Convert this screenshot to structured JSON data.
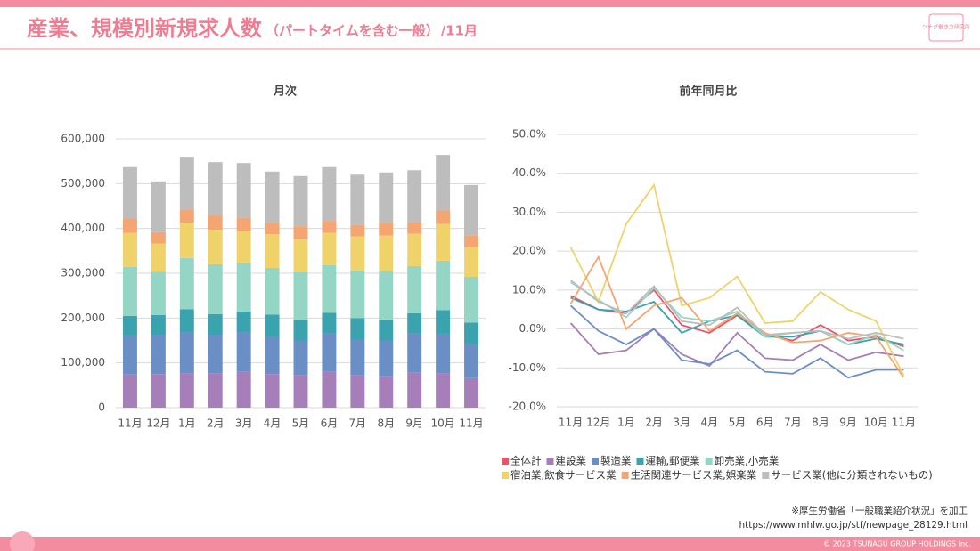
{
  "header": {
    "title": "産業、規模別新規求人数",
    "subtitle": "（パートタイムを含む一般）",
    "month": "/11月",
    "logo": "ツナグ働き方研究所"
  },
  "source": [
    "※厚生労働省「一般職業紹介状況」を加工",
    "https://www.mhlw.go.jp/stf/newpage_28129.html"
  ],
  "copyright": "© 2023 TSUNAGU GROUP HOLDINGS Inc.",
  "chart_data": [
    {
      "type": "stacked_bar",
      "title": "月次",
      "categories": [
        "11月",
        "12月",
        "1月",
        "2月",
        "3月",
        "4月",
        "5月",
        "6月",
        "7月",
        "8月",
        "9月",
        "10月",
        "11月"
      ],
      "ylim": [
        0,
        600000
      ],
      "yticks": [
        0,
        {
          "value": 100000,
          "label": "100,000"
        },
        {
          "value": 200000,
          "label": "200,000"
        },
        {
          "value": 300000,
          "label": "300,000"
        },
        {
          "value": 400000,
          "label": "400,000"
        },
        {
          "value": 500000,
          "label": "500,000"
        },
        {
          "value": 600000,
          "label": "600,000"
        }
      ],
      "grid": true,
      "series": [
        {
          "color": "#a67fb8",
          "values": [
            74000,
            75000,
            76000,
            76000,
            80000,
            75000,
            72000,
            80000,
            72000,
            70000,
            78000,
            76000,
            66000
          ]
        },
        {
          "color": "#6b8fc5",
          "values": [
            87000,
            87000,
            92000,
            86000,
            88000,
            83000,
            78000,
            86000,
            80000,
            80000,
            88000,
            89000,
            76000
          ]
        },
        {
          "color": "#3aa3ad",
          "values": [
            44000,
            45000,
            52000,
            47000,
            47000,
            50000,
            46000,
            46000,
            48000,
            47000,
            45000,
            53000,
            48000
          ]
        },
        {
          "color": "#95d5c6",
          "values": [
            109000,
            96000,
            114000,
            111000,
            109000,
            104000,
            106000,
            106000,
            106000,
            108000,
            105000,
            110000,
            102000
          ]
        },
        {
          "color": "#efd36a",
          "values": [
            76000,
            63000,
            79000,
            77000,
            71000,
            75000,
            74000,
            72000,
            76000,
            79000,
            72000,
            82000,
            66000
          ]
        },
        {
          "color": "#f4a672",
          "values": [
            33000,
            26000,
            28000,
            32000,
            29000,
            26000,
            29000,
            27000,
            26000,
            29000,
            27000,
            30000,
            27000
          ]
        },
        {
          "color": "#bdbdbd",
          "values": [
            114000,
            113000,
            119000,
            119000,
            122000,
            114000,
            112000,
            120000,
            112000,
            112000,
            115000,
            124000,
            112000
          ]
        }
      ]
    },
    {
      "type": "line",
      "title": "前年同月比",
      "categories": [
        "11月",
        "12月",
        "1月",
        "2月",
        "3月",
        "4月",
        "5月",
        "6月",
        "7月",
        "8月",
        "9月",
        "10月",
        "11月"
      ],
      "ylim": [
        -20,
        50
      ],
      "yticks": [
        {
          "value": -20,
          "label": "-20.0%"
        },
        {
          "value": -10,
          "label": "-10.0%"
        },
        {
          "value": 0,
          "label": "0.0%"
        },
        {
          "value": 10,
          "label": "10.0%"
        },
        {
          "value": 20,
          "label": "20.0%"
        },
        {
          "value": 30,
          "label": "30.0%"
        },
        {
          "value": 40,
          "label": "40.0%"
        },
        {
          "value": 50,
          "label": "50.0%"
        }
      ],
      "grid": true,
      "series": [
        {
          "name": "全体計",
          "color": "#e8556a",
          "values": [
            8.5,
            5,
            4,
            10,
            1,
            -1,
            3.5,
            -1.5,
            -3,
            1,
            -3,
            -2,
            -4.5
          ]
        },
        {
          "name": "建設業",
          "color": "#a67fb8",
          "values": [
            1.5,
            -6.5,
            -5.5,
            0,
            -6.5,
            -9.5,
            -1,
            -7.5,
            -8,
            -4,
            -8,
            -6,
            -7
          ]
        },
        {
          "name": "製造業",
          "color": "#6b8fc5",
          "values": [
            6,
            -0.5,
            -4,
            0,
            -8,
            -9,
            -5.5,
            -11,
            -11.5,
            -7.5,
            -12.5,
            -10.5,
            -10.5
          ]
        },
        {
          "name": "運輸,郵便業",
          "color": "#3aa3ad",
          "values": [
            8,
            5,
            4.5,
            7,
            -1,
            2,
            3.5,
            -2,
            -2,
            -0.5,
            -4,
            -2.5,
            -4
          ]
        },
        {
          "name": "卸売業,小売業",
          "color": "#95d5c6",
          "values": [
            12,
            7.5,
            3,
            10.5,
            3,
            2,
            4.5,
            -2,
            -1,
            -0.5,
            -4,
            -1.5,
            -5.5
          ]
        },
        {
          "name": "宿泊業,飲食サービス業",
          "color": "#efd36a",
          "values": [
            21,
            7,
            27,
            37,
            6,
            8,
            13.5,
            1.5,
            2,
            9.5,
            5,
            2,
            -12
          ]
        },
        {
          "name": "生活関連サービス業,娯楽業",
          "color": "#f4a672",
          "values": [
            6.5,
            18.5,
            0,
            6,
            8,
            -0.5,
            4,
            -1,
            -3.5,
            -3,
            -1,
            -2,
            -12.5
          ]
        },
        {
          "name": "サービス業(他に分類されないもの)",
          "color": "#bdbdbd",
          "values": [
            12.5,
            7,
            4,
            11,
            2,
            1,
            5.5,
            -1.5,
            -1,
            -0.5,
            -2.5,
            -1,
            -2.5
          ]
        }
      ]
    }
  ]
}
